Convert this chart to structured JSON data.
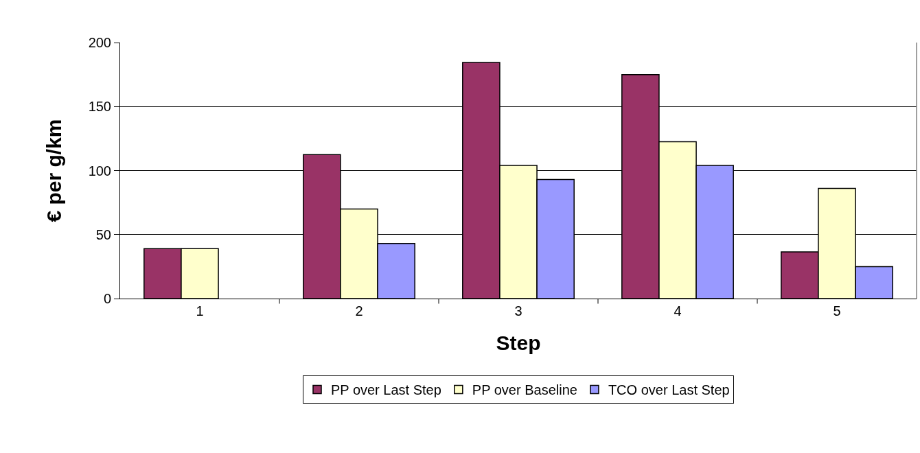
{
  "chart_data": {
    "type": "bar",
    "xlabel": "Step",
    "ylabel": "€ per g/km",
    "categories": [
      "1",
      "2",
      "3",
      "4",
      "5"
    ],
    "series": [
      {
        "name": "PP over Last Step",
        "color": "#993366",
        "values": [
          39,
          112.5,
          184.5,
          175,
          36.5
        ]
      },
      {
        "name": "PP over Baseline",
        "color": "#ffffcc",
        "values": [
          39,
          70,
          104,
          122.5,
          86
        ]
      },
      {
        "name": "TCO over Last Step",
        "color": "#9999ff",
        "values": [
          null,
          43,
          93,
          104,
          25
        ]
      }
    ],
    "ylim": [
      0,
      200
    ],
    "yticks": [
      0,
      50,
      100,
      150,
      200
    ],
    "grid": "y",
    "legend": "bottom"
  }
}
